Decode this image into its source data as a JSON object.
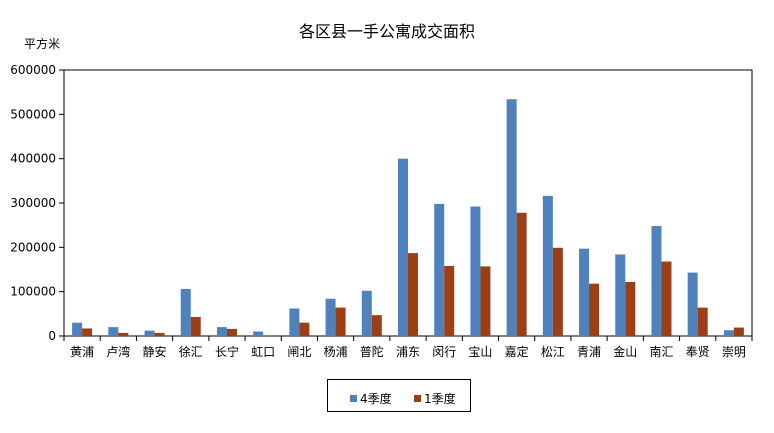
{
  "chart_data": {
    "type": "bar",
    "title": "各区县一手公寓成交面积",
    "ylabel": "平方米",
    "xlabel": "",
    "ylim": [
      0,
      600000
    ],
    "yticks": [
      0,
      100000,
      200000,
      300000,
      400000,
      500000,
      600000
    ],
    "ytick_labels": [
      "0",
      "100000",
      "200000",
      "300000",
      "400000",
      "500000",
      "600000"
    ],
    "grid": false,
    "legend_position": "bottom",
    "categories": [
      "黄浦",
      "卢湾",
      "静安",
      "徐汇",
      "长宁",
      "虹口",
      "闸北",
      "杨浦",
      "普陀",
      "浦东",
      "闵行",
      "宝山",
      "嘉定",
      "松江",
      "青浦",
      "金山",
      "南汇",
      "奉贤",
      "崇明"
    ],
    "series": [
      {
        "name": "4季度",
        "color": "#4F81BD",
        "values": [
          30000,
          20000,
          12000,
          106000,
          20000,
          10000,
          62000,
          84000,
          102000,
          400000,
          298000,
          292000,
          534000,
          316000,
          197000,
          184000,
          248000,
          143000,
          13000
        ]
      },
      {
        "name": "1季度",
        "color": "#9C3E16",
        "values": [
          17000,
          7000,
          7000,
          43000,
          16000,
          0,
          30000,
          64000,
          47000,
          187000,
          158000,
          157000,
          278000,
          199000,
          118000,
          122000,
          168000,
          64000,
          19000
        ]
      }
    ]
  }
}
